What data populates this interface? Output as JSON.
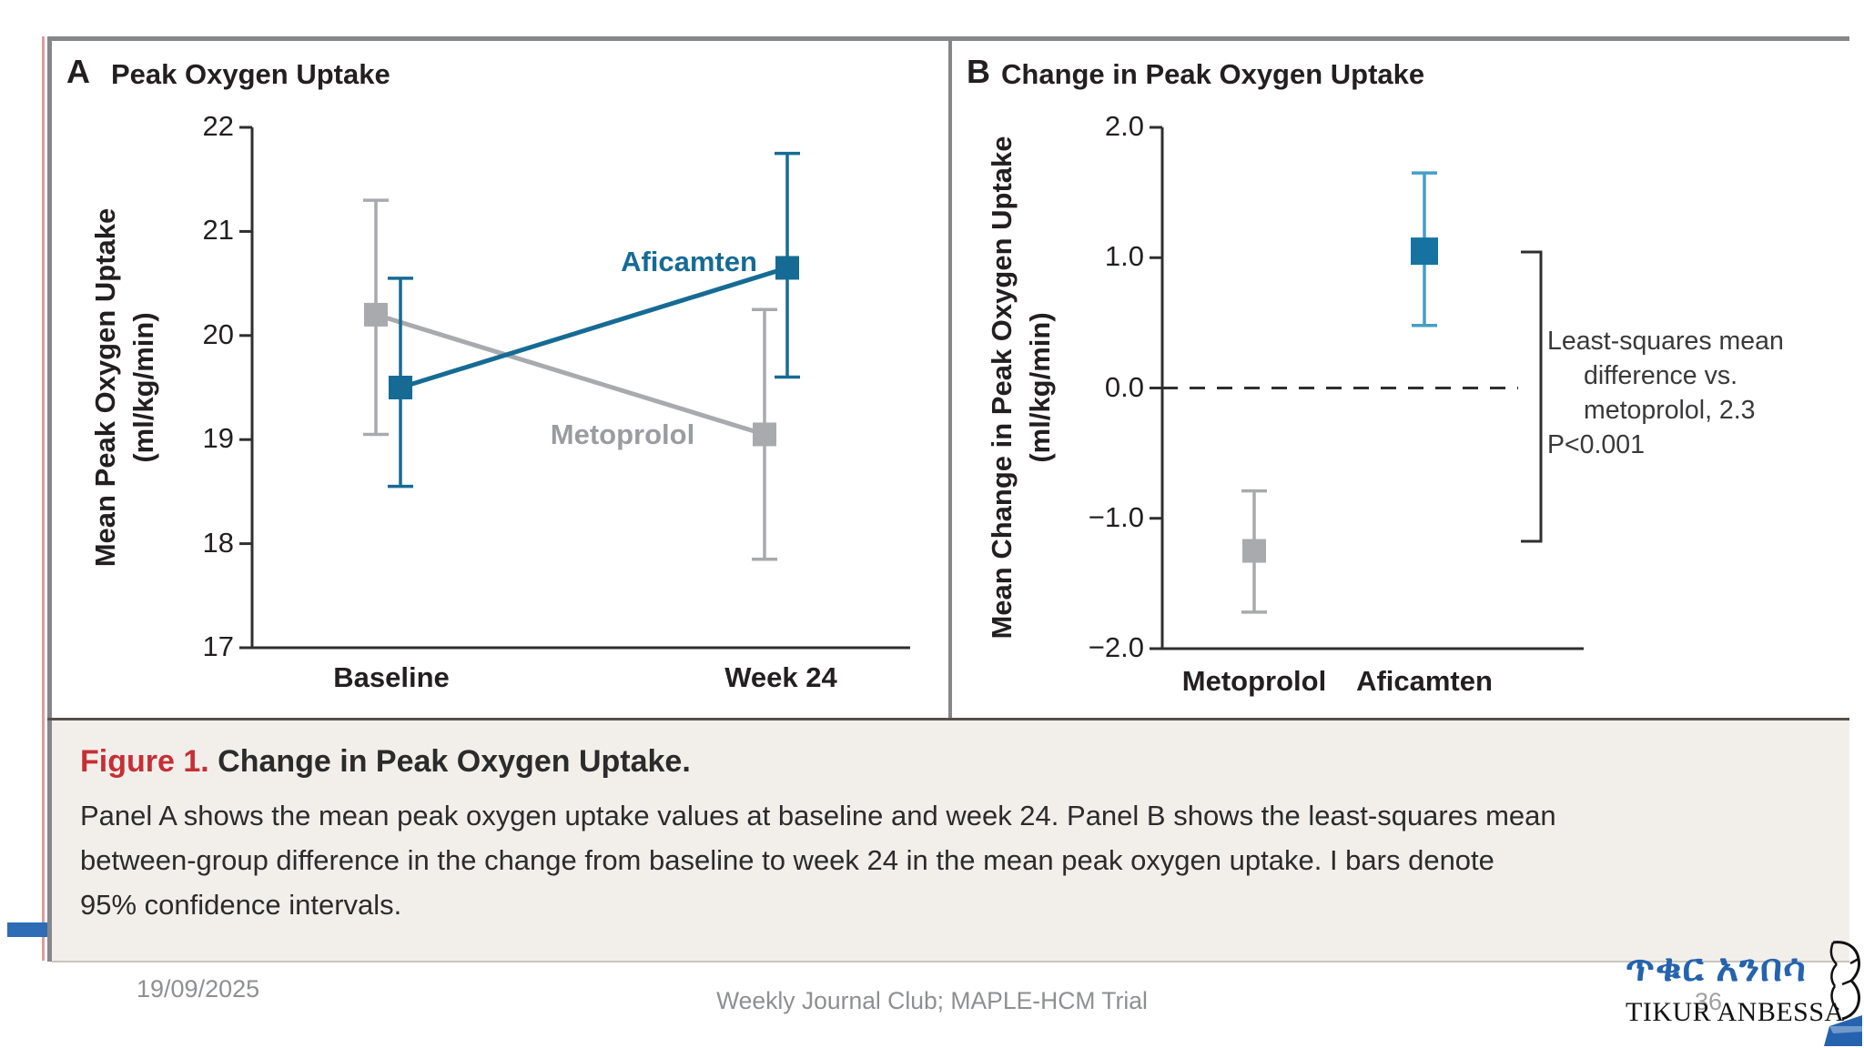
{
  "slide": {
    "date": "19/09/2025",
    "footer_center": "Weekly Journal Club; MAPLE-HCM Trial",
    "slide_number": "36"
  },
  "logo": {
    "amharic": "ጥቁር አንበሳ",
    "latin": "TIKUR ANBESSA"
  },
  "caption": {
    "label": "Figure 1.",
    "title": " Change in Peak Oxygen Uptake.",
    "body_lines": [
      "Panel A shows the mean peak oxygen uptake values at baseline and week 24. Panel B shows the least-squares mean",
      "between-group difference in the change from baseline to week 24 in the mean peak oxygen uptake. I bars denote",
      "95% confidence intervals."
    ]
  },
  "colors": {
    "teal": "#166b95",
    "teal_point_b": "#1673a1",
    "teal_ci_b": "#459ec6",
    "gray_series": "#a8aaad",
    "gray_label": "#9a9c9f",
    "axis": "#2f2f31",
    "caption_bg": "#f2efea",
    "figure_red": "#c62f36",
    "border_gray": "#85878a",
    "footer_gray": "#8d8f91",
    "logo_blue": "#2563ae"
  },
  "chart_data": [
    {
      "id": "panelA",
      "type": "line",
      "panel_letter": "A",
      "title": "Peak Oxygen Uptake",
      "ylabel_line1": "Mean Peak Oxygen Uptake",
      "ylabel_line2": "(ml/kg/min)",
      "categories": [
        "Baseline",
        "Week 24"
      ],
      "ylim": [
        17,
        22
      ],
      "yticks": [
        {
          "v": 22,
          "label": "22"
        },
        {
          "v": 21,
          "label": "21"
        },
        {
          "v": 20,
          "label": "20"
        },
        {
          "v": 19,
          "label": "19"
        },
        {
          "v": 18,
          "label": "18"
        },
        {
          "v": 17,
          "label": "17"
        }
      ],
      "error_bars": "95% confidence intervals",
      "series": [
        {
          "name": "Metoprolol",
          "values": [
            20.2,
            19.05
          ],
          "ci_low": [
            19.05,
            17.85
          ],
          "ci_high": [
            21.3,
            20.25
          ]
        },
        {
          "name": "Aficamten",
          "values": [
            19.5,
            20.65
          ],
          "ci_low": [
            18.55,
            19.6
          ],
          "ci_high": [
            20.55,
            21.75
          ]
        }
      ]
    },
    {
      "id": "panelB",
      "type": "scatter",
      "panel_letter": "B",
      "title": "Change in Peak Oxygen Uptake",
      "ylabel_line1": "Mean Change in Peak Oxygen Uptake",
      "ylabel_line2": "(ml/kg/min)",
      "categories": [
        "Metoprolol",
        "Aficamten"
      ],
      "ylim": [
        -2,
        2
      ],
      "yticks": [
        {
          "v": 2,
          "label": "2.0"
        },
        {
          "v": 1,
          "label": "1.0"
        },
        {
          "v": 0,
          "label": "0.0"
        },
        {
          "v": -1,
          "label": "−1.0"
        },
        {
          "v": -2,
          "label": "−2.0"
        }
      ],
      "zero_line": "dashed",
      "series": [
        {
          "name": "Metoprolol",
          "value": -1.25,
          "ci_low": -1.72,
          "ci_high": -0.79
        },
        {
          "name": "Aficamten",
          "value": 1.05,
          "ci_low": 0.48,
          "ci_high": 1.65
        }
      ],
      "annotation": [
        "Least-squares mean",
        "difference vs.",
        "metoprolol, 2.3",
        "P<0.001"
      ]
    }
  ]
}
